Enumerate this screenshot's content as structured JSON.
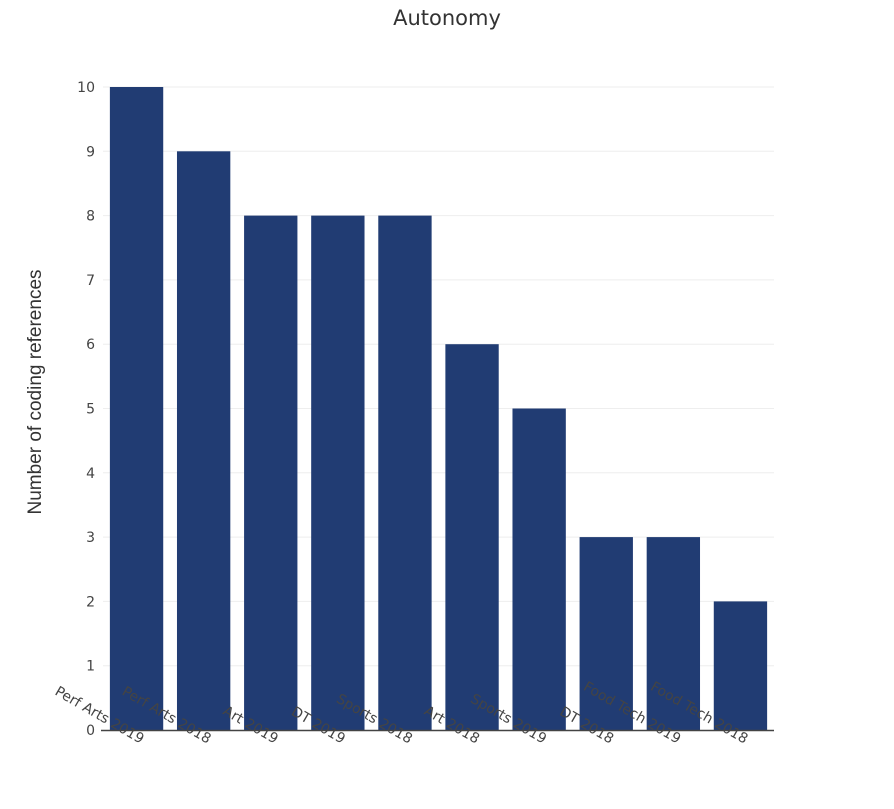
{
  "chart_data": {
    "type": "bar",
    "title": "Autonomy",
    "ylabel": "Number of coding references",
    "xlabel": "",
    "categories": [
      "Perf Arts 2019",
      "Perf Arts 2018",
      "Art 2019",
      "DT 2019",
      "Sports 2018",
      "Art 2018",
      "Sports 2019",
      "DT 2018",
      "Food Tech 2019",
      "Food Tech 2018"
    ],
    "values": [
      10,
      9,
      8,
      8,
      8,
      6,
      5,
      3,
      3,
      2
    ],
    "ylim": [
      0,
      10
    ],
    "yticks": [
      "0",
      "1",
      "2",
      "3",
      "4",
      "5",
      "6",
      "7",
      "8",
      "9",
      "10"
    ],
    "grid": true,
    "bar_color": "#213c73",
    "grid_color": "#eeeeee"
  }
}
